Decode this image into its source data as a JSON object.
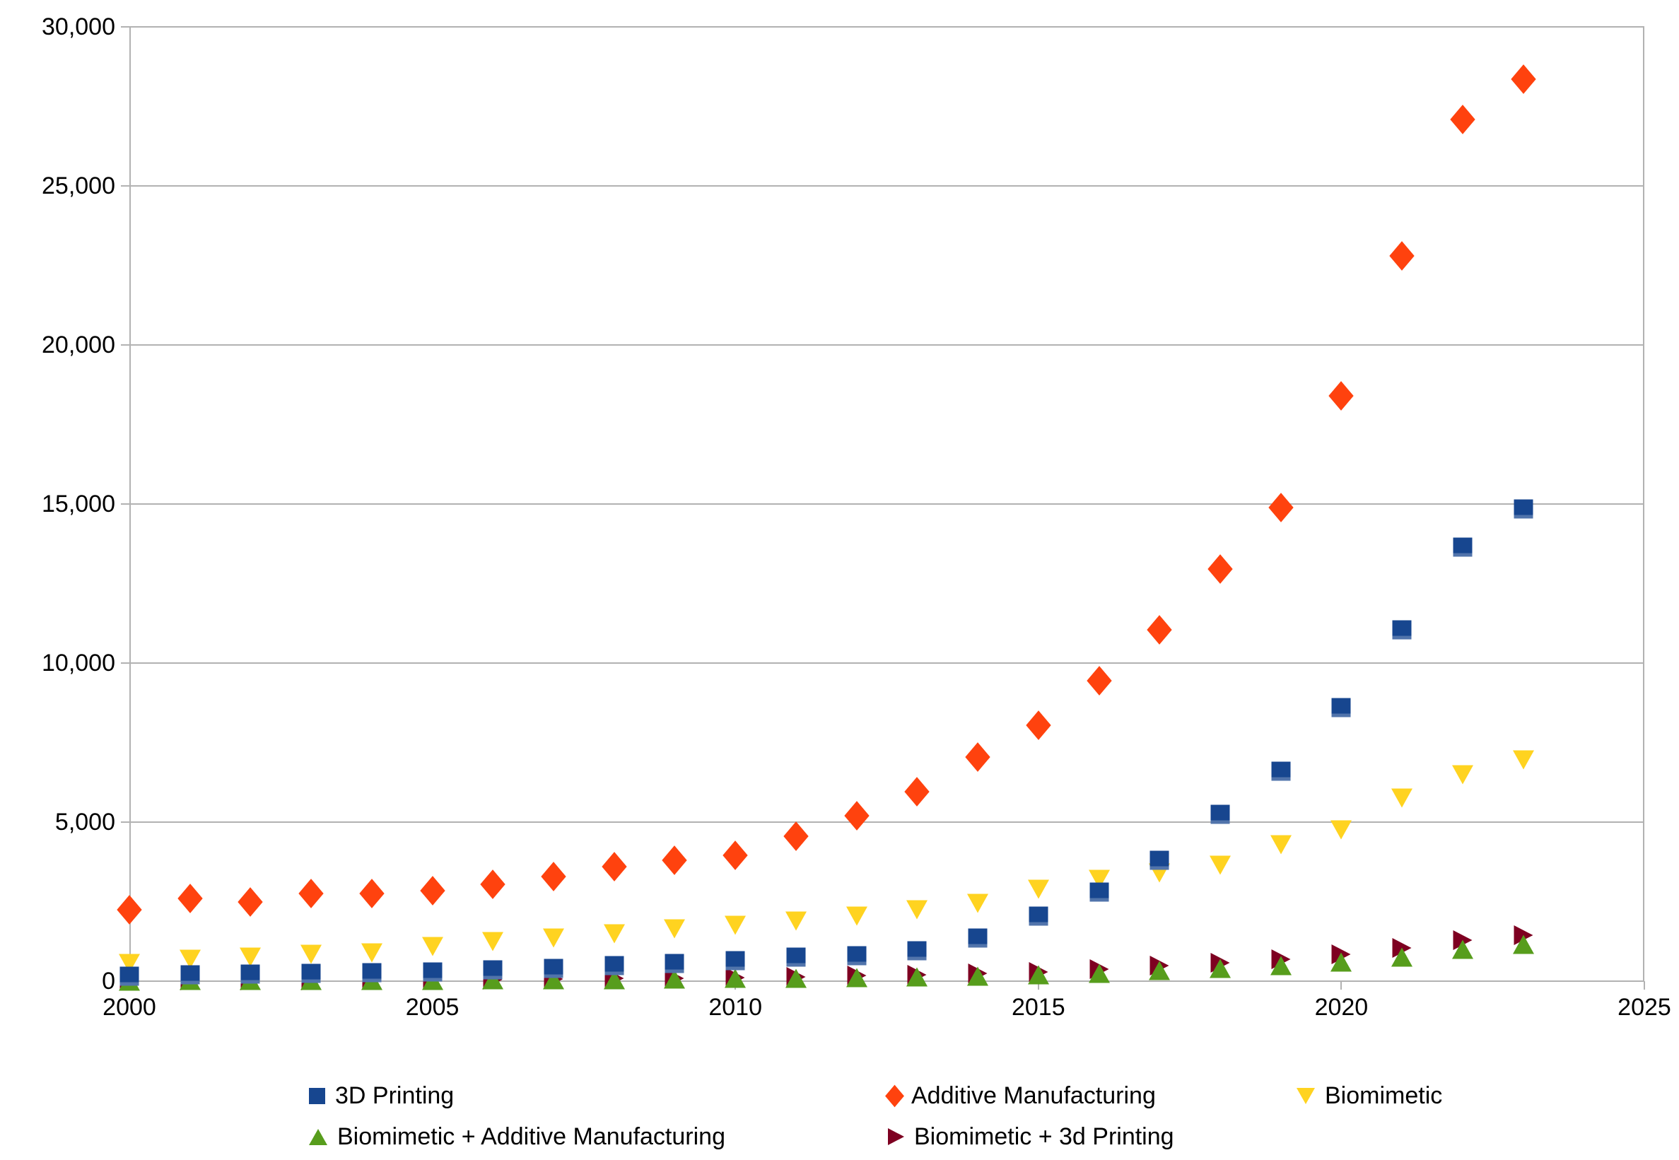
{
  "chart_data": {
    "type": "scatter",
    "title": "",
    "xlabel": "",
    "ylabel": "",
    "xlim": [
      2000,
      2025
    ],
    "ylim": [
      0,
      30000
    ],
    "x_ticks": [
      2000,
      2005,
      2010,
      2015,
      2020,
      2025
    ],
    "x_tick_labels": [
      "2000",
      "2005",
      "2010",
      "2015",
      "2020",
      "2025"
    ],
    "y_ticks": [
      0,
      5000,
      10000,
      15000,
      20000,
      25000,
      30000
    ],
    "y_tick_labels": [
      "0",
      "5,000",
      "10,000",
      "15,000",
      "20,000",
      "25,000",
      "30,000"
    ],
    "grid": "horizontal-only",
    "legend_position": "bottom",
    "x": [
      2000,
      2001,
      2002,
      2003,
      2004,
      2005,
      2006,
      2007,
      2008,
      2009,
      2010,
      2011,
      2012,
      2013,
      2014,
      2015,
      2016,
      2017,
      2018,
      2019,
      2020,
      2021,
      2022,
      2023
    ],
    "series": [
      {
        "name": "3D Printing",
        "marker": "square",
        "color": "#17468F",
        "values": [
          150,
          200,
          220,
          250,
          260,
          300,
          350,
          400,
          500,
          560,
          650,
          750,
          800,
          950,
          1350,
          2050,
          2800,
          3800,
          5250,
          6600,
          8600,
          11050,
          13650,
          14850
        ]
      },
      {
        "name": "Additive Manufacturing",
        "marker": "diamond",
        "color": "#FF420E",
        "values": [
          2250,
          2600,
          2500,
          2750,
          2750,
          2850,
          3050,
          3300,
          3600,
          3800,
          3950,
          4550,
          5200,
          5950,
          7050,
          8050,
          9450,
          11050,
          12950,
          14900,
          18400,
          22800,
          27100,
          28350
        ]
      },
      {
        "name": "Biomimetic",
        "marker": "triangle-down",
        "color": "#FFD320",
        "values": [
          550,
          700,
          750,
          850,
          900,
          1100,
          1250,
          1350,
          1500,
          1650,
          1750,
          1900,
          2050,
          2250,
          2450,
          2900,
          3200,
          3400,
          3650,
          4300,
          4750,
          5750,
          6500,
          6950
        ]
      },
      {
        "name": "Biomimetic + Additive Manufacturing",
        "marker": "triangle-up",
        "color": "#579D1C",
        "values": [
          10,
          12,
          15,
          18,
          22,
          28,
          35,
          45,
          55,
          70,
          85,
          100,
          120,
          140,
          160,
          190,
          250,
          330,
          400,
          480,
          600,
          750,
          1000,
          1150
        ]
      },
      {
        "name": "Biomimetic + 3d Printing",
        "marker": "triangle-right",
        "color": "#7E0021",
        "values": [
          15,
          18,
          22,
          28,
          35,
          45,
          55,
          70,
          85,
          100,
          120,
          140,
          170,
          200,
          240,
          280,
          380,
          500,
          580,
          700,
          850,
          1050,
          1300,
          1450
        ]
      }
    ],
    "colors": {
      "gridline": "#B2B2B2",
      "axis_text": "#000000",
      "background": "#FFFFFF"
    }
  }
}
